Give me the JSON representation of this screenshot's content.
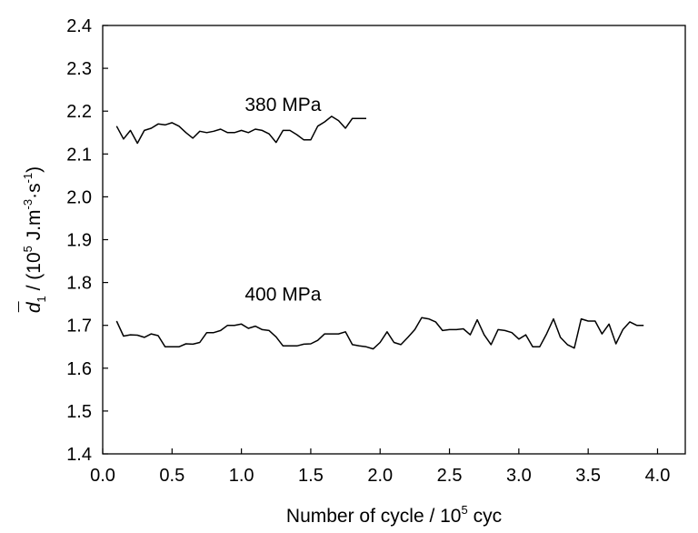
{
  "chart_data": {
    "type": "line",
    "title": "",
    "xlabel": "Number of cycle / 10",
    "xlabel_exp": "5",
    "xlabel_tail": " cyc",
    "ylabel": {
      "symbol": "d",
      "bar": "¯",
      "subscript": "1",
      "middle": " / (10",
      "exp1": "5",
      "unit_a": " J.m",
      "exp2": "-3",
      "unit_b": "·s",
      "exp3": "-1",
      "close": ")"
    },
    "xlim": [
      0.0,
      4.2
    ],
    "ylim": [
      1.4,
      2.4
    ],
    "x_ticks": [
      "0.0",
      "0.5",
      "1.0",
      "1.5",
      "2.0",
      "2.5",
      "3.0",
      "3.5",
      "4.0"
    ],
    "y_ticks": [
      "1.4",
      "1.5",
      "1.6",
      "1.7",
      "1.8",
      "1.9",
      "2.0",
      "2.1",
      "2.2",
      "2.3",
      "2.4"
    ],
    "grid": false,
    "series": [
      {
        "name": "380 MPa",
        "color": "#000000",
        "x": [
          0.1,
          0.15,
          0.2,
          0.25,
          0.3,
          0.35,
          0.4,
          0.45,
          0.5,
          0.55,
          0.6,
          0.65,
          0.7,
          0.75,
          0.8,
          0.85,
          0.9,
          0.95,
          1.0,
          1.05,
          1.1,
          1.15,
          1.2,
          1.25,
          1.3,
          1.35,
          1.4,
          1.45,
          1.5,
          1.55,
          1.6,
          1.65,
          1.7,
          1.75,
          1.8,
          1.85,
          1.9
        ],
        "y": [
          2.165,
          2.135,
          2.155,
          2.125,
          2.155,
          2.16,
          2.17,
          2.168,
          2.173,
          2.165,
          2.15,
          2.137,
          2.153,
          2.15,
          2.153,
          2.158,
          2.15,
          2.15,
          2.155,
          2.15,
          2.158,
          2.155,
          2.147,
          2.127,
          2.155,
          2.155,
          2.145,
          2.133,
          2.133,
          2.165,
          2.175,
          2.188,
          2.178,
          2.16,
          2.183,
          2.183,
          2.183
        ]
      },
      {
        "name": "400 MPa",
        "color": "#000000",
        "x": [
          0.1,
          0.15,
          0.2,
          0.25,
          0.3,
          0.35,
          0.4,
          0.45,
          0.5,
          0.55,
          0.6,
          0.65,
          0.7,
          0.75,
          0.8,
          0.85,
          0.9,
          0.95,
          1.0,
          1.05,
          1.1,
          1.15,
          1.2,
          1.25,
          1.3,
          1.35,
          1.4,
          1.45,
          1.5,
          1.55,
          1.6,
          1.65,
          1.7,
          1.75,
          1.8,
          1.85,
          1.9,
          1.95,
          2.0,
          2.05,
          2.1,
          2.15,
          2.2,
          2.25,
          2.3,
          2.35,
          2.4,
          2.45,
          2.5,
          2.55,
          2.6,
          2.65,
          2.7,
          2.75,
          2.8,
          2.85,
          2.9,
          2.95,
          3.0,
          3.05,
          3.1,
          3.15,
          3.2,
          3.25,
          3.3,
          3.35,
          3.4,
          3.45,
          3.5,
          3.55,
          3.6,
          3.65,
          3.7,
          3.75,
          3.8,
          3.85,
          3.9
        ],
        "y": [
          1.71,
          1.675,
          1.678,
          1.677,
          1.672,
          1.68,
          1.676,
          1.65,
          1.65,
          1.65,
          1.657,
          1.656,
          1.66,
          1.683,
          1.683,
          1.688,
          1.7,
          1.7,
          1.703,
          1.693,
          1.698,
          1.69,
          1.688,
          1.673,
          1.652,
          1.652,
          1.652,
          1.656,
          1.657,
          1.665,
          1.68,
          1.68,
          1.68,
          1.685,
          1.655,
          1.652,
          1.65,
          1.645,
          1.66,
          1.685,
          1.66,
          1.655,
          1.672,
          1.69,
          1.718,
          1.715,
          1.708,
          1.688,
          1.69,
          1.69,
          1.692,
          1.678,
          1.713,
          1.678,
          1.655,
          1.69,
          1.688,
          1.683,
          1.668,
          1.678,
          1.65,
          1.65,
          1.68,
          1.715,
          1.672,
          1.655,
          1.647,
          1.715,
          1.71,
          1.71,
          1.68,
          1.703,
          1.657,
          1.69,
          1.708,
          1.7,
          1.7
        ]
      }
    ],
    "annotations": [
      {
        "text": "380 MPa",
        "x": 1.3,
        "y": 2.215
      },
      {
        "text": "400 MPa",
        "x": 1.3,
        "y": 1.773
      }
    ]
  }
}
